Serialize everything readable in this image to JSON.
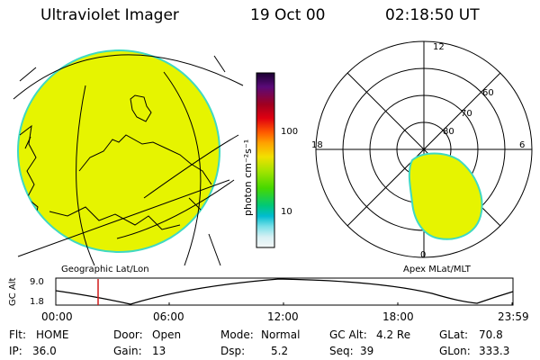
{
  "header": {
    "instrument": "Ultraviolet Imager",
    "date": "19 Oct 00",
    "time": "02:18:50 UT"
  },
  "geo_panel": {
    "label": "Geographic Lat/Lon",
    "fill_color": "#e6f400",
    "edge_color": "#3fd9c2"
  },
  "colorbar": {
    "unit_label": "photon cm⁻²s⁻¹",
    "tick_100": "100",
    "tick_10": "10",
    "scale": "log",
    "colors_top_to_bottom": [
      "#1a0030",
      "#5a0a78",
      "#a00020",
      "#e00010",
      "#ff5a00",
      "#ffa000",
      "#f2e000",
      "#a6e400",
      "#46d800",
      "#00c878",
      "#00bcd0",
      "#7ae0e8",
      "#d8f0f4",
      "#f4f8f8"
    ]
  },
  "polar_panel": {
    "label": "Apex MLat/MLT",
    "mlt_12": "12",
    "mlt_18": "18",
    "mlt_6": "6",
    "mlt_0": "0",
    "lat_60": "60",
    "lat_70": "70",
    "lat_80": "80"
  },
  "orbit_plot": {
    "ylabel": "GC Alt",
    "y_top": "9.0",
    "y_bottom": "1.8",
    "x_ticks": [
      "00:00",
      "06:00",
      "12:00",
      "18:00",
      "23:59"
    ],
    "marker_time": "02:18:50",
    "marker_color": "#d01818"
  },
  "footer": {
    "flt_label": "Flt:",
    "flt_value": "HOME",
    "ip_label": "IP:",
    "ip_value": "36.0",
    "door_label": "Door:",
    "door_value": "Open",
    "gain_label": "Gain:",
    "gain_value": "13",
    "mode_label": "Mode:",
    "mode_value": "Normal",
    "dsp_label": "Dsp:",
    "dsp_value": "5.2",
    "gcalt_label": "GC Alt:",
    "gcalt_value": "4.2 Re",
    "seq_label": "Seq:",
    "seq_value": "39",
    "glat_label": "GLat:",
    "glat_value": "70.8",
    "glon_label": "GLon:",
    "glon_value": "333.3"
  }
}
